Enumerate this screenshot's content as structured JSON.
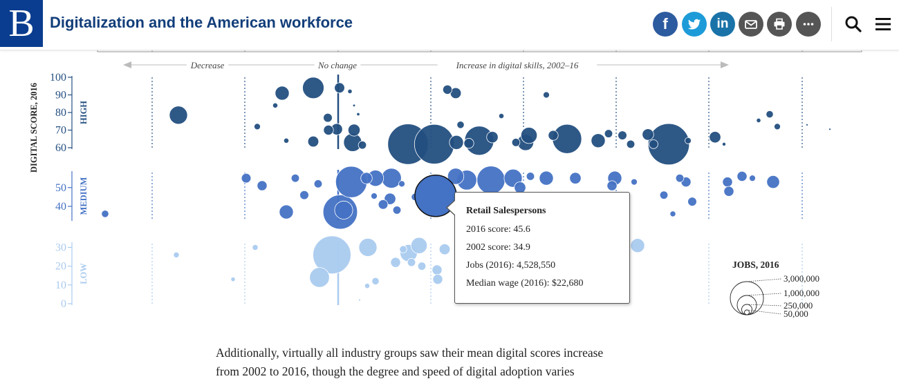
{
  "header": {
    "logo": "B",
    "title": "Digitalization and the American workforce",
    "share_icons": [
      "facebook-icon",
      "twitter-icon",
      "linkedin-icon",
      "email-icon",
      "print-icon",
      "more-icon"
    ],
    "share_glyphs": {
      "facebook": "f",
      "linkedin": "in"
    },
    "tool_icons": [
      "search-icon",
      "menu-icon"
    ],
    "colors": {
      "brand": "#0a3d8f",
      "title": "#123e7a",
      "facebook": "#2d5b9f",
      "twitter": "#1d9bd8",
      "linkedin": "#1a73a8",
      "email": "#555555",
      "print": "#555555",
      "more": "#555555"
    }
  },
  "chart_data": {
    "type": "scatter",
    "encoding": "bubble size = jobs (2016); y = digital score 2016; x bands = change in digital score 2002–16",
    "y_title": "DIGITAL SCORE, 2016",
    "x_direction_labels": [
      "Decrease",
      "No change",
      "Increase in digital skills, 2002–16"
    ],
    "bands": [
      {
        "name": "HIGH",
        "color": "#234f80",
        "ticks": [
          100,
          90,
          80,
          70,
          60
        ],
        "range": [
          60,
          100
        ]
      },
      {
        "name": "MEDIUM",
        "color": "#4472c4",
        "ticks": [
          50,
          40
        ],
        "range": [
          33,
          58
        ]
      },
      {
        "name": "LOW",
        "color": "#aacbef",
        "ticks": [
          30,
          20,
          10,
          0
        ],
        "range": [
          0,
          32
        ]
      }
    ],
    "legend": {
      "title": "JOBS, 2016",
      "sizes": [
        "3,000,000",
        "1,000,000",
        "250,000",
        "50,000"
      ],
      "position": "bottom-right"
    },
    "bubbles_high": [
      {
        "x": 258,
        "y": 78.5,
        "jobs": 500000
      },
      {
        "x": 372,
        "y": 72,
        "jobs": 60000
      },
      {
        "x": 398,
        "y": 84,
        "jobs": 40000
      },
      {
        "x": 408,
        "y": 91,
        "jobs": 300000
      },
      {
        "x": 414,
        "y": 64,
        "jobs": 40000
      },
      {
        "x": 453,
        "y": 94,
        "jobs": 700000
      },
      {
        "x": 453,
        "y": 63.5,
        "jobs": 180000
      },
      {
        "x": 474,
        "y": 77,
        "jobs": 120000
      },
      {
        "x": 475,
        "y": 70,
        "jobs": 150000
      },
      {
        "x": 487,
        "y": 70.5,
        "jobs": 200000
      },
      {
        "x": 491,
        "y": 94,
        "jobs": 160000
      },
      {
        "x": 506,
        "y": 92,
        "jobs": 30000
      },
      {
        "x": 510,
        "y": 63,
        "jobs": 500000
      },
      {
        "x": 512,
        "y": 70,
        "jobs": 220000
      },
      {
        "x": 524,
        "y": 61.5,
        "jobs": 100000
      },
      {
        "x": 512,
        "y": 84,
        "jobs": 10000
      },
      {
        "x": 518,
        "y": 79,
        "jobs": 15000
      },
      {
        "x": 590,
        "y": 62,
        "jobs": 2500000
      },
      {
        "x": 628,
        "y": 62,
        "jobs": 2400000
      },
      {
        "x": 647,
        "y": 93,
        "jobs": 130000
      },
      {
        "x": 659,
        "y": 91,
        "jobs": 180000
      },
      {
        "x": 660,
        "y": 63,
        "jobs": 300000
      },
      {
        "x": 666,
        "y": 73,
        "jobs": 80000
      },
      {
        "x": 678,
        "y": 62.5,
        "jobs": 150000
      },
      {
        "x": 693,
        "y": 64,
        "jobs": 1300000
      },
      {
        "x": 712,
        "y": 66,
        "jobs": 200000
      },
      {
        "x": 725,
        "y": 78,
        "jobs": 40000
      },
      {
        "x": 746,
        "y": 63,
        "jobs": 100000
      },
      {
        "x": 760,
        "y": 63,
        "jobs": 400000
      },
      {
        "x": 765,
        "y": 67,
        "jobs": 400000
      },
      {
        "x": 790,
        "y": 90,
        "jobs": 60000
      },
      {
        "x": 800,
        "y": 67,
        "jobs": 150000
      },
      {
        "x": 820,
        "y": 65,
        "jobs": 1300000
      },
      {
        "x": 865,
        "y": 64,
        "jobs": 300000
      },
      {
        "x": 880,
        "y": 68,
        "jobs": 100000
      },
      {
        "x": 900,
        "y": 67,
        "jobs": 120000
      },
      {
        "x": 912,
        "y": 62,
        "jobs": 100000
      },
      {
        "x": 937,
        "y": 67.5,
        "jobs": 200000
      },
      {
        "x": 945,
        "y": 62,
        "jobs": 120000
      },
      {
        "x": 967,
        "y": 62,
        "jobs": 2600000
      },
      {
        "x": 995,
        "y": 64,
        "jobs": 60000
      },
      {
        "x": 1034,
        "y": 66,
        "jobs": 200000
      },
      {
        "x": 1047,
        "y": 62,
        "jobs": 20000
      },
      {
        "x": 1113,
        "y": 79,
        "jobs": 80000
      },
      {
        "x": 1124,
        "y": 72,
        "jobs": 60000
      },
      {
        "x": 1097,
        "y": 75.5,
        "jobs": 30000
      },
      {
        "x": 1167,
        "y": 73,
        "jobs": 6000
      },
      {
        "x": 1200,
        "y": 70.5,
        "jobs": 6000
      }
    ],
    "bubbles_medium": [
      {
        "x": 152,
        "y": 36,
        "jobs": 80000
      },
      {
        "x": 356,
        "y": 55,
        "jobs": 140000
      },
      {
        "x": 379,
        "y": 51,
        "jobs": 150000
      },
      {
        "x": 414,
        "y": 37,
        "jobs": 300000
      },
      {
        "x": 427,
        "y": 55,
        "jobs": 100000
      },
      {
        "x": 440,
        "y": 46,
        "jobs": 120000
      },
      {
        "x": 460,
        "y": 52,
        "jobs": 100000
      },
      {
        "x": 492,
        "y": 37,
        "jobs": 1800000
      },
      {
        "x": 497,
        "y": 38,
        "jobs": 500000
      },
      {
        "x": 508,
        "y": 53,
        "jobs": 1500000
      },
      {
        "x": 530,
        "y": 55,
        "jobs": 200000
      },
      {
        "x": 543,
        "y": 55,
        "jobs": 400000
      },
      {
        "x": 566,
        "y": 55,
        "jobs": 600000
      },
      {
        "x": 541,
        "y": 45.5,
        "jobs": 60000
      },
      {
        "x": 554,
        "y": 41,
        "jobs": 140000
      },
      {
        "x": 564,
        "y": 44,
        "jobs": 200000
      },
      {
        "x": 574,
        "y": 38,
        "jobs": 100000
      },
      {
        "x": 581,
        "y": 52,
        "jobs": 60000
      },
      {
        "x": 659,
        "y": 56,
        "jobs": 400000
      },
      {
        "x": 675,
        "y": 54,
        "jobs": 600000
      },
      {
        "x": 710,
        "y": 54,
        "jobs": 1200000
      },
      {
        "x": 742,
        "y": 55,
        "jobs": 500000
      },
      {
        "x": 752,
        "y": 50,
        "jobs": 200000
      },
      {
        "x": 767,
        "y": 56,
        "jobs": 100000
      },
      {
        "x": 790,
        "y": 55,
        "jobs": 300000
      },
      {
        "x": 832,
        "y": 55,
        "jobs": 200000
      },
      {
        "x": 889,
        "y": 55,
        "jobs": 300000
      },
      {
        "x": 885,
        "y": 51,
        "jobs": 150000
      },
      {
        "x": 917,
        "y": 53,
        "jobs": 60000
      },
      {
        "x": 960,
        "y": 46,
        "jobs": 100000
      },
      {
        "x": 983,
        "y": 55,
        "jobs": 100000
      },
      {
        "x": 992,
        "y": 53,
        "jobs": 150000
      },
      {
        "x": 1001,
        "y": 42.5,
        "jobs": 120000
      },
      {
        "x": 1052,
        "y": 53,
        "jobs": 150000
      },
      {
        "x": 1054,
        "y": 48,
        "jobs": 150000
      },
      {
        "x": 1073,
        "y": 56,
        "jobs": 150000
      },
      {
        "x": 1118,
        "y": 53,
        "jobs": 250000
      },
      {
        "x": 1088,
        "y": 55,
        "jobs": 60000
      },
      {
        "x": 973,
        "y": 36,
        "jobs": 50000
      },
      {
        "x": 600,
        "y": 45,
        "jobs": 80000
      }
    ],
    "bubbles_low": [
      {
        "x": 255,
        "y": 26,
        "jobs": 50000
      },
      {
        "x": 337,
        "y": 13,
        "jobs": 30000
      },
      {
        "x": 369,
        "y": 30,
        "jobs": 50000
      },
      {
        "x": 480,
        "y": 26,
        "jobs": 2200000
      },
      {
        "x": 462,
        "y": 14,
        "jobs": 600000
      },
      {
        "x": 532,
        "y": 30,
        "jobs": 500000
      },
      {
        "x": 543,
        "y": 12,
        "jobs": 80000
      },
      {
        "x": 531,
        "y": 9.5,
        "jobs": 40000
      },
      {
        "x": 520,
        "y": 2,
        "jobs": 6000
      },
      {
        "x": 572,
        "y": 22,
        "jobs": 150000
      },
      {
        "x": 591,
        "y": 27,
        "jobs": 450000
      },
      {
        "x": 606,
        "y": 31,
        "jobs": 400000
      },
      {
        "x": 583,
        "y": 29,
        "jobs": 80000
      },
      {
        "x": 595,
        "y": 22,
        "jobs": 100000
      },
      {
        "x": 610,
        "y": 20,
        "jobs": 100000
      },
      {
        "x": 632,
        "y": 18,
        "jobs": 150000
      },
      {
        "x": 633,
        "y": 13,
        "jobs": 150000
      },
      {
        "x": 643,
        "y": 29,
        "jobs": 180000
      },
      {
        "x": 922,
        "y": 31,
        "jobs": 300000
      },
      {
        "x": 908,
        "y": 30,
        "jobs": 40000
      }
    ],
    "tooltip_bubble": {
      "x": 630,
      "y": 45.6,
      "jobs": 4528550,
      "label": "Retail Salespersons"
    }
  },
  "tooltip": {
    "title": "Retail Salespersons",
    "lines": [
      "2016 score: 45.6",
      "2002 score: 34.9",
      "Jobs (2016): 4,528,550",
      "Median wage (2016): $22,680"
    ]
  },
  "body_text": {
    "line1": "Additionally, virtually all industry groups saw their mean digital scores increase",
    "line2": "from 2002 to 2016, though the degree and speed of digital adoption varies"
  }
}
